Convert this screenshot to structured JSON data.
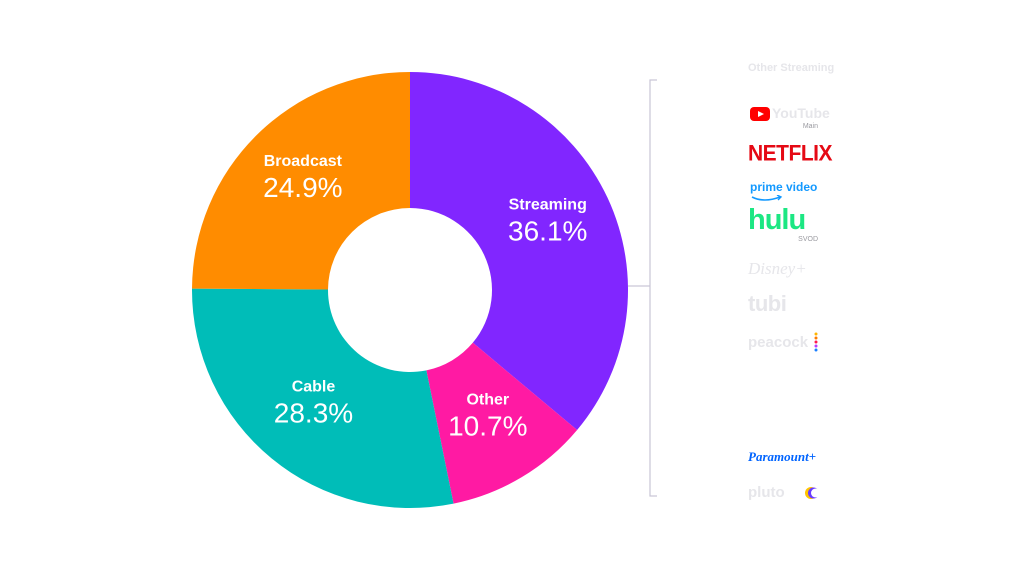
{
  "chart_data": {
    "type": "pie",
    "categories": [
      "Streaming",
      "Other",
      "Cable",
      "Broadcast"
    ],
    "values": [
      36.1,
      10.7,
      28.3,
      24.9
    ],
    "labels": [
      "36.1%",
      "10.7%",
      "28.3%",
      "24.9%"
    ],
    "colors": [
      "#8126ff",
      "#ff1aa3",
      "#00bdb8",
      "#ff8c00"
    ],
    "donut": true,
    "start": "12 o'clock",
    "direction": "clockwise",
    "legend": "none",
    "title": ""
  },
  "streaming_breakdown": {
    "heading": "Other Streaming",
    "items": [
      {
        "name": "YouTube",
        "sub": "Main",
        "icon": "youtube-logo"
      },
      {
        "name": "NETFLIX",
        "icon": "netflix-logo"
      },
      {
        "name": "prime video",
        "icon": "prime-video-logo"
      },
      {
        "name": "hulu",
        "sub": "SVOD",
        "icon": "hulu-logo"
      },
      {
        "name": "Disney+",
        "icon": "disney-plus-logo"
      },
      {
        "name": "tubi",
        "icon": "tubi-logo"
      },
      {
        "name": "peacock",
        "icon": "peacock-logo"
      },
      {
        "name": "Paramount+",
        "icon": "paramount-plus-logo"
      },
      {
        "name": "pluto",
        "icon": "pluto-logo"
      }
    ],
    "colors": {
      "youtube": "#ff0000",
      "netflix": "#e50914",
      "prime": "#1399ff",
      "hulu": "#1ce783",
      "paramount": "#0064ff",
      "bracket": "#c9c6d6"
    }
  }
}
